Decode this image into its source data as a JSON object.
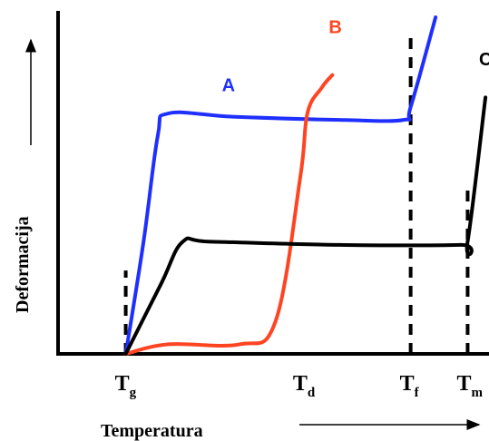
{
  "chart_data": {
    "type": "line",
    "title": "",
    "xlabel": "Temperatura",
    "ylabel": "Deformacija",
    "x_ticks": [
      {
        "label": "T",
        "sub": "g",
        "x": 0
      },
      {
        "label": "T",
        "sub": "d",
        "x": 2.5
      },
      {
        "label": "T",
        "sub": "f",
        "x": 4.0
      },
      {
        "label": "T",
        "sub": "m",
        "x": 4.8
      }
    ],
    "reference_lines": [
      {
        "name": "Tg",
        "x": 0,
        "y_from": 0,
        "y_to": 0.26
      },
      {
        "name": "Tf",
        "x": 4.0,
        "y_from": 0,
        "y_to": 1.0
      },
      {
        "name": "Tm",
        "x": 4.8,
        "y_from": 0,
        "y_to": 0.52
      }
    ],
    "series": [
      {
        "name": "A",
        "color": "#1f2fff",
        "points": [
          [
            0,
            0
          ],
          [
            0.25,
            0.35
          ],
          [
            0.45,
            0.68
          ],
          [
            0.6,
            0.75
          ],
          [
            1.5,
            0.74
          ],
          [
            3.0,
            0.73
          ],
          [
            3.9,
            0.73
          ],
          [
            4.0,
            0.77
          ],
          [
            4.35,
            1.05
          ]
        ]
      },
      {
        "name": "B",
        "color": "#ff4422",
        "points": [
          [
            0,
            0
          ],
          [
            0.6,
            0.03
          ],
          [
            1.6,
            0.03
          ],
          [
            2.1,
            0.1
          ],
          [
            2.45,
            0.55
          ],
          [
            2.55,
            0.75
          ],
          [
            2.75,
            0.83
          ],
          [
            2.9,
            0.87
          ]
        ]
      },
      {
        "name": "C",
        "color": "#000000",
        "points": [
          [
            0,
            0
          ],
          [
            0.5,
            0.22
          ],
          [
            0.8,
            0.35
          ],
          [
            1.2,
            0.35
          ],
          [
            3.0,
            0.34
          ],
          [
            4.7,
            0.34
          ],
          [
            4.8,
            0.35
          ],
          [
            5.05,
            0.8
          ]
        ]
      }
    ],
    "xlim": [
      -0.95,
      5.1
    ],
    "ylim": [
      0,
      1.07
    ],
    "arrows": {
      "x_axis_arrow": "right",
      "y_axis_arrow": "up"
    }
  }
}
